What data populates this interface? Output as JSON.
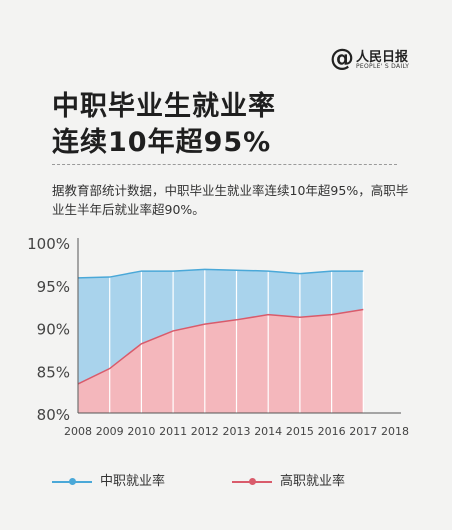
{
  "brand": {
    "symbol": "@",
    "name": "人民日报",
    "name_en": "PEOPLE' S DAILY"
  },
  "title_line1": "中职毕业生就业率",
  "title_line2": "连续10年超95%",
  "description": "据教育部统计数据，中职毕业生就业率连续10年超95%，高职毕业生半年后就业率超90%。",
  "chart_data": {
    "type": "area",
    "x": [
      2008,
      2009,
      2010,
      2011,
      2012,
      2013,
      2014,
      2015,
      2016,
      2017
    ],
    "x_ticks": [
      "2008",
      "2009",
      "2010",
      "2011",
      "2012",
      "2013",
      "2014",
      "2015",
      "2016",
      "2017",
      "2018"
    ],
    "y_ticks": [
      "100%",
      "95%",
      "90%",
      "85%",
      "80%"
    ],
    "ylim": [
      80,
      100
    ],
    "series": [
      {
        "name": "中职就业率",
        "values": [
          95.8,
          95.9,
          96.6,
          96.6,
          96.8,
          96.7,
          96.6,
          96.3,
          96.6,
          96.6
        ],
        "line_color": "#4aa8d8",
        "fill_color": "#a9d3ec"
      },
      {
        "name": "高职就业率",
        "values": [
          83.4,
          85.2,
          88.1,
          89.6,
          90.4,
          90.9,
          91.5,
          91.2,
          91.5,
          92.1
        ],
        "line_color": "#d95b6b",
        "fill_color": "#f4b7bc"
      }
    ],
    "grid": false,
    "legend": "bottom"
  }
}
